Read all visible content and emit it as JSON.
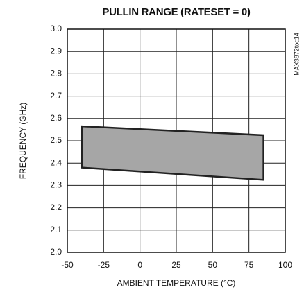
{
  "chart_data": {
    "type": "area",
    "title": "PULLIN RANGE (RATESET = 0)",
    "xlabel": "AMBIENT TEMPERATURE (°C)",
    "ylabel": "FREQUENCY (GHz)",
    "annotation": "MAX3872toc14",
    "x": [
      -40,
      85
    ],
    "series": [
      {
        "values": [
          2.565,
          2.525
        ]
      },
      {
        "values": [
          2.38,
          2.325
        ]
      }
    ],
    "color": "#a6a6a6",
    "edge_color": "#222222",
    "xlim": [
      -50,
      100
    ],
    "xticks": [
      -50,
      -25,
      0,
      25,
      50,
      75,
      100
    ],
    "ylim": [
      2.0,
      3.0
    ],
    "yticks": [
      {
        "value": 2.0,
        "label": "2.0"
      },
      2.1,
      2.2,
      2.3,
      2.4,
      2.5,
      2.6,
      2.7,
      2.8,
      2.9,
      {
        "value": 3.0,
        "label": "3.0"
      }
    ],
    "grid": true
  }
}
